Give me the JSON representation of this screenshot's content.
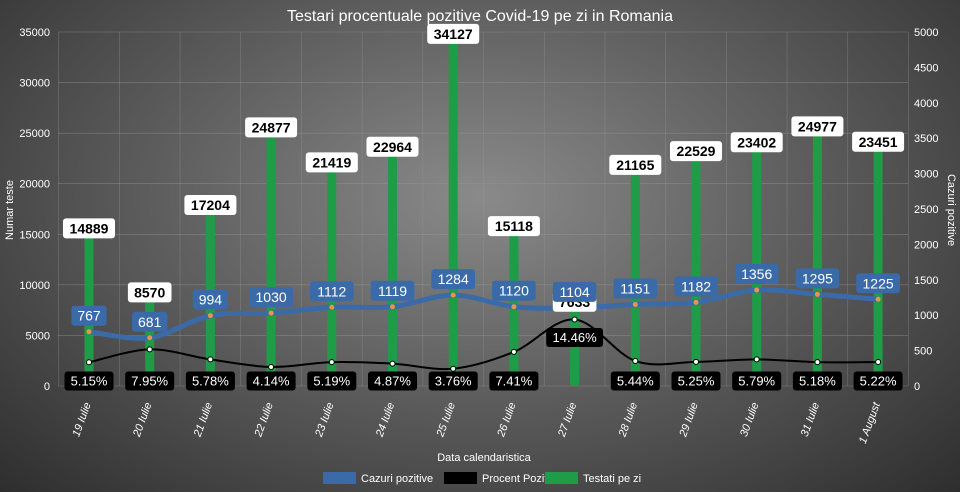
{
  "chart_data": {
    "type": "bar",
    "title": "Testari procentuale pozitive Covid-19 pe zi in Romania",
    "xlabel": "Data calendaristica",
    "ylabel_left": "Numar teste",
    "ylabel_right": "Cazuri pozitive",
    "ylim_left": [
      0,
      35000
    ],
    "ylim_right": [
      0,
      5000
    ],
    "yticks_left": [
      "0",
      "5000",
      "10000",
      "15000",
      "20000",
      "25000",
      "30000",
      "35000"
    ],
    "yticks_right": [
      "0",
      "500",
      "1000",
      "1500",
      "2000",
      "2500",
      "3000",
      "3500",
      "4000",
      "4500",
      "5000"
    ],
    "grid": true,
    "legend_position": "bottom",
    "categories": [
      "19 Iulie",
      "20 Iulie",
      "21 Iulie",
      "22 Iulie",
      "23 Iulie",
      "24 Iulie",
      "25 Iulie",
      "26 Iulie",
      "27 Iulie",
      "28 Iulie",
      "29 Iulie",
      "30 Iulie",
      "31 Iulie",
      "1 August"
    ],
    "series": [
      {
        "name": "Cazuri pozitive",
        "type": "line",
        "axis": "right",
        "color": "#3a6ba8",
        "values": [
          767,
          681,
          994,
          1030,
          1112,
          1119,
          1284,
          1120,
          1104,
          1151,
          1182,
          1356,
          1295,
          1225
        ],
        "labels": [
          "767",
          "681",
          "994",
          "1030",
          "1112",
          "1119",
          "1284",
          "1120",
          "1104",
          "1151",
          "1182",
          "1356",
          "1295",
          "1225"
        ]
      },
      {
        "name": "Procent Pozitivi",
        "type": "line",
        "axis": "right-percent",
        "color": "#000000",
        "values": [
          5.15,
          7.95,
          5.78,
          4.14,
          5.19,
          4.87,
          3.76,
          7.41,
          14.46,
          5.44,
          5.25,
          5.79,
          5.18,
          5.22
        ],
        "labels": [
          "5.15%",
          "7.95%",
          "5.78%",
          "4.14%",
          "5.19%",
          "4.87%",
          "3.76%",
          "7.41%",
          "14.46%",
          "5.44%",
          "5.25%",
          "5.79%",
          "5.18%",
          "5.22%"
        ]
      },
      {
        "name": "Testati pe zi",
        "type": "bar",
        "axis": "left",
        "color": "#1f9c47",
        "values": [
          14889,
          8570,
          17204,
          24877,
          21419,
          22964,
          34127,
          15118,
          7633,
          21165,
          22529,
          23402,
          24977,
          23451
        ],
        "labels": [
          "14889",
          "8570",
          "17204",
          "24877",
          "21419",
          "22964",
          "34127",
          "15118",
          "7633",
          "21165",
          "22529",
          "23402",
          "24977",
          "23451"
        ]
      }
    ]
  }
}
